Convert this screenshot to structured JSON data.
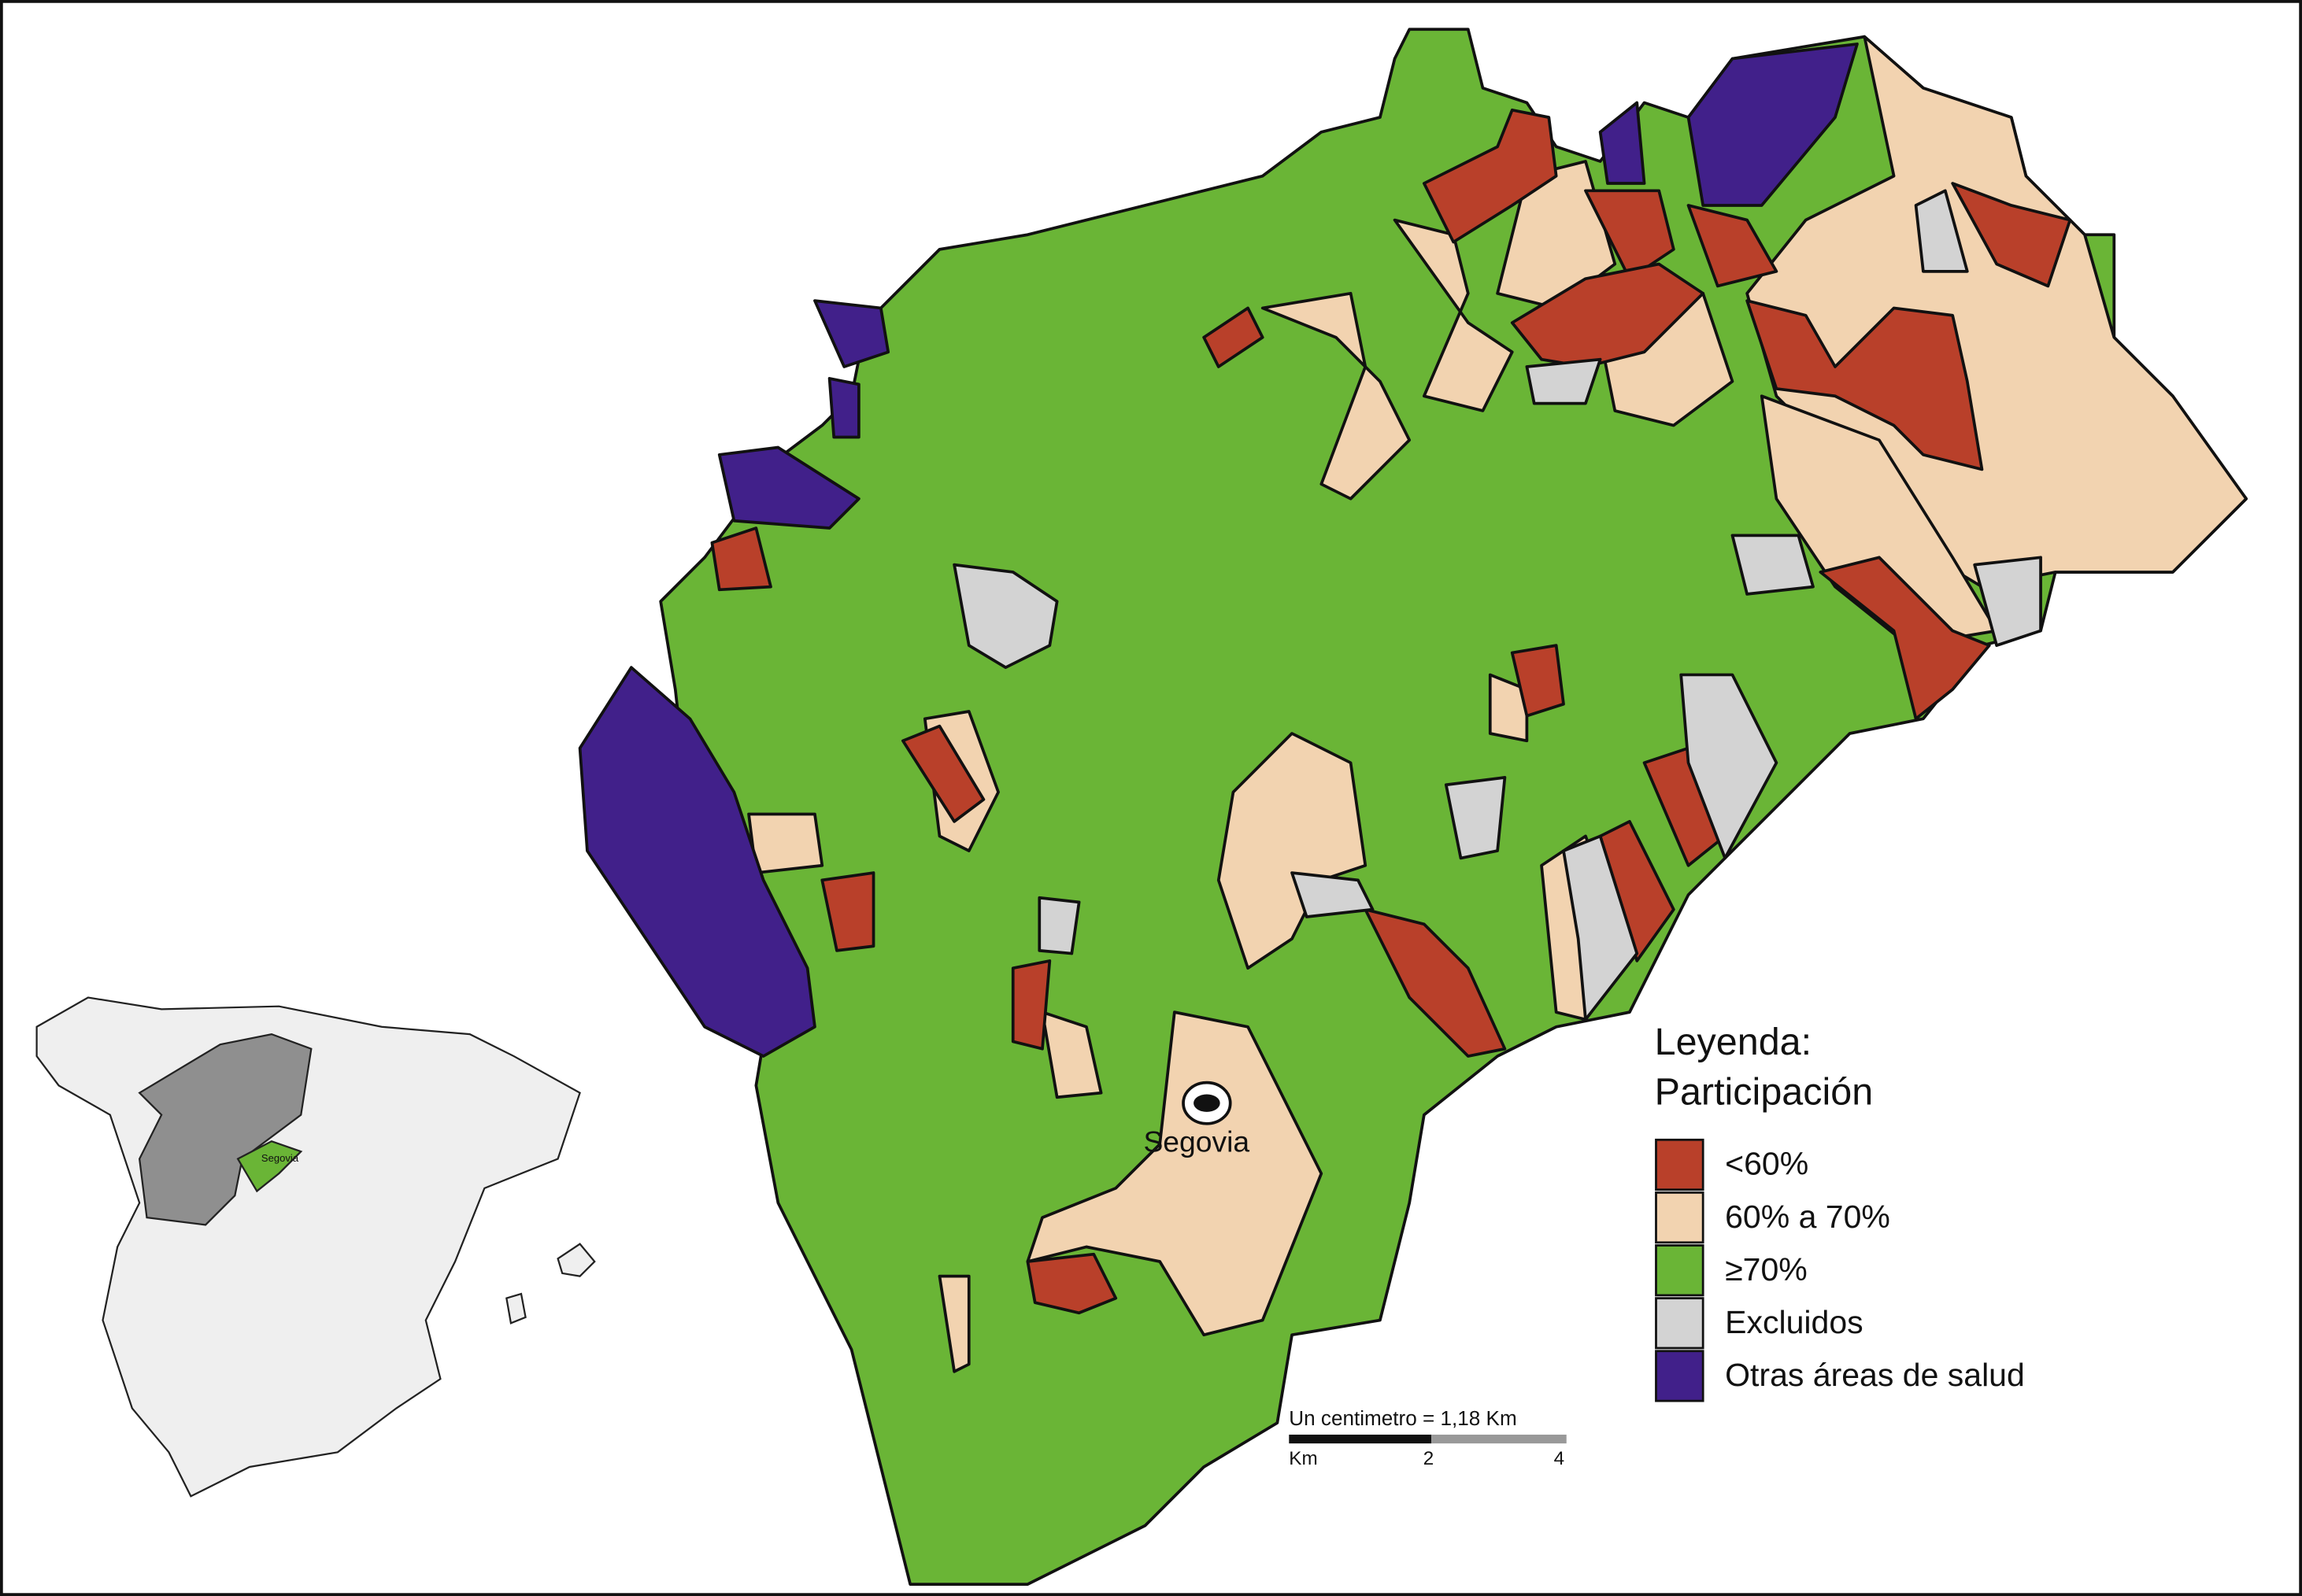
{
  "map": {
    "city_label": "Segovia",
    "inset_label": "Segovia",
    "legend": {
      "title": "Leyenda:",
      "subtitle": "Participación",
      "items": [
        {
          "label": "<60%",
          "color": "#b9402a"
        },
        {
          "label": "60% a 70%",
          "color": "#f2d3b0"
        },
        {
          "label": "≥70%",
          "color": "#6ab536"
        },
        {
          "label": "Excluidos",
          "color": "#d3d3d3"
        },
        {
          "label": "Otras áreas de salud",
          "color": "#41208a"
        }
      ]
    },
    "scale": {
      "caption": "Un centimetro = 1,18 Km",
      "unit": "Km",
      "marks": [
        "2",
        "4"
      ]
    }
  }
}
